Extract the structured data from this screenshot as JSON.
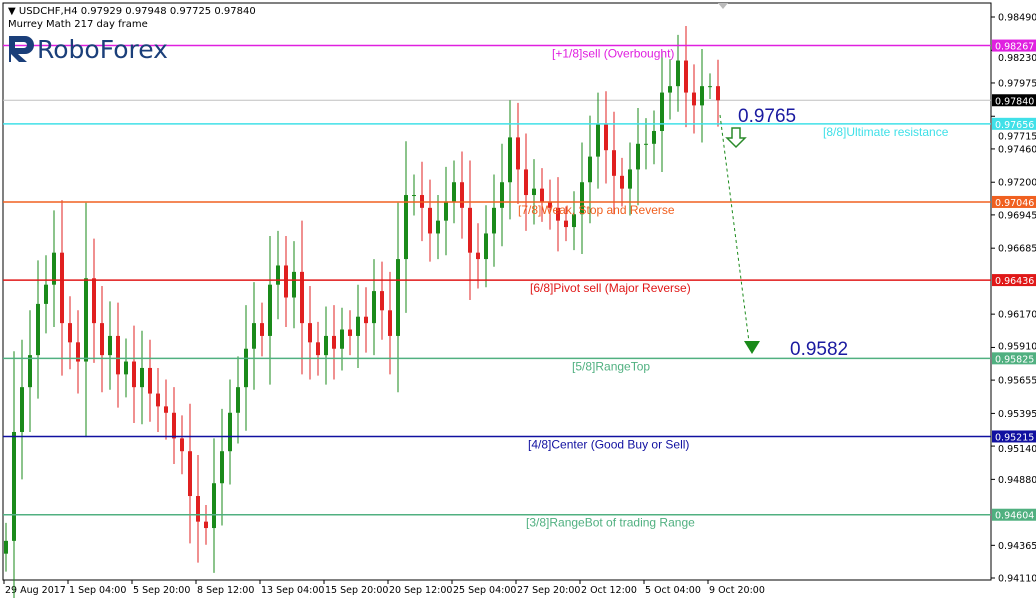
{
  "header": {
    "symbol_line": "USDCHF,H4  0.97929 0.97948 0.97725 0.97840",
    "indicator": "Murrey Math 217 day frame",
    "logo_text": "RoboForex"
  },
  "chart_data": {
    "type": "candlestick",
    "symbol": "USDCHF",
    "timeframe": "H4",
    "ohlc_current": {
      "open": 0.97929,
      "high": 0.97948,
      "low": 0.97725,
      "close": 0.9784
    },
    "ylim": [
      0.9411,
      0.9849
    ],
    "y_ticks": [
      "0.98490",
      "0.98230",
      "0.97975",
      "0.97715",
      "0.97460",
      "0.97200",
      "0.96945",
      "0.96685",
      "0.96170",
      "0.95910",
      "0.95655",
      "0.95395",
      "0.95140",
      "0.94880",
      "0.94365",
      "0.94110"
    ],
    "x_ticks": [
      "29 Aug 2017",
      "1 Sep 04:00",
      "5 Sep 20:00",
      "8 Sep 12:00",
      "13 Sep 04:00",
      "15 Sep 20:00",
      "20 Sep 12:00",
      "25 Sep 04:00",
      "27 Sep 20:00",
      "2 Oct 12:00",
      "5 Oct 04:00",
      "9 Oct 20:00"
    ],
    "closes": [
      0.944,
      0.9525,
      0.956,
      0.9585,
      0.9625,
      0.964,
      0.9665,
      0.961,
      0.9595,
      0.958,
      0.9645,
      0.961,
      0.9585,
      0.96,
      0.957,
      0.958,
      0.956,
      0.9575,
      0.9555,
      0.9545,
      0.954,
      0.952,
      0.951,
      0.9475,
      0.9455,
      0.945,
      0.9485,
      0.951,
      0.954,
      0.956,
      0.959,
      0.961,
      0.96,
      0.964,
      0.9655,
      0.963,
      0.965,
      0.961,
      0.9595,
      0.9585,
      0.96,
      0.959,
      0.9605,
      0.96,
      0.9615,
      0.961,
      0.9635,
      0.962,
      0.96,
      0.966,
      0.971,
      0.971,
      0.97,
      0.968,
      0.969,
      0.9705,
      0.972,
      0.97,
      0.9665,
      0.966,
      0.968,
      0.97,
      0.972,
      0.9755,
      0.973,
      0.971,
      0.9715,
      0.9705,
      0.97,
      0.969,
      0.9685,
      0.9695,
      0.972,
      0.974,
      0.9765,
      0.9745,
      0.9725,
      0.9715,
      0.973,
      0.975,
      0.975,
      0.976,
      0.979,
      0.9795,
      0.9815,
      0.979,
      0.978,
      0.9795,
      0.9795,
      0.9784
    ],
    "bull_color": "#1a8a1a",
    "bear_color": "#e02020",
    "current_price": {
      "value": 0.9784,
      "label": "0.97840",
      "color": "#000000"
    },
    "levels": [
      {
        "value": 0.98267,
        "label": "0.98267",
        "text": "[+1/8]sell (Overbought)",
        "color": "#e020e0"
      },
      {
        "value": 0.97656,
        "label": "0.97656",
        "text": "[8/8]Ultimate resistance",
        "color": "#40e0e8"
      },
      {
        "value": 0.97046,
        "label": "0.97046",
        "text": "[7/8]Weak, Stop and Reverse",
        "color": "#f06020"
      },
      {
        "value": 0.96436,
        "label": "0.96436",
        "text": "[6/8]Pivot sell (Major Reverse)",
        "color": "#e01818"
      },
      {
        "value": 0.95825,
        "label": "0.95825",
        "text": "[5/8]RangeTop",
        "color": "#50b080"
      },
      {
        "value": 0.95215,
        "label": "0.95215",
        "text": "[4/8]Center (Good Buy or Sell)",
        "color": "#1010a0"
      },
      {
        "value": 0.94604,
        "label": "0.94604",
        "text": "[3/8]RangeBot of trading Range",
        "color": "#50b080"
      }
    ],
    "annotations": [
      {
        "text": "0.9765",
        "value": 0.9765,
        "color": "#1a1aa0"
      },
      {
        "text": "0.9582",
        "value": 0.9582,
        "color": "#1a1aa0"
      }
    ]
  }
}
